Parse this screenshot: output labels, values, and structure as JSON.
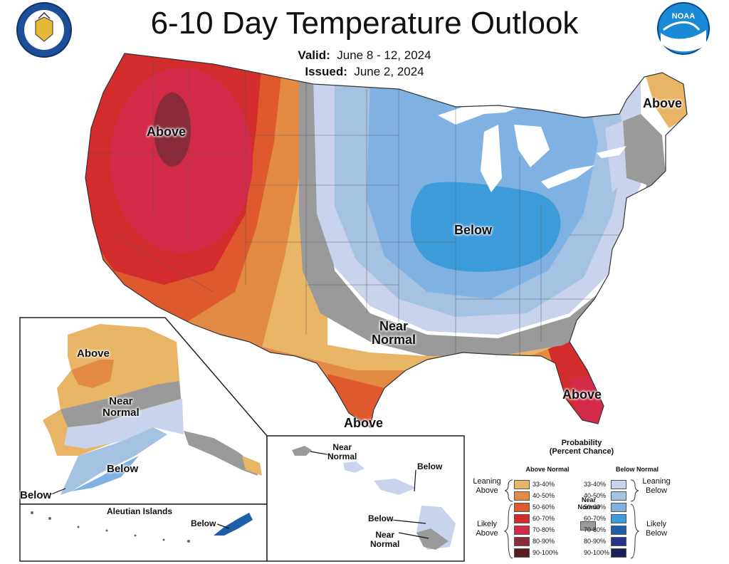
{
  "header": {
    "title": "6-10 Day Temperature Outlook",
    "valid_label": "Valid:",
    "valid_value": "June 8 - 12, 2024",
    "issued_label": "Issued:",
    "issued_value": "June 2, 2024"
  },
  "logos": {
    "left": "doc-seal",
    "right": "noaa-logo",
    "noaa_text": "NOAA"
  },
  "conus_labels": {
    "northwest": "Above",
    "northeast": "Above",
    "central": "Below",
    "near_normal": "Near\nNormal",
    "florida": "Above",
    "texas": "Above"
  },
  "alaska_labels": {
    "above": "Above",
    "near_normal": "Near\nNormal",
    "below": "Below",
    "below_sw": "Below"
  },
  "aleutian": {
    "title": "Aleutian Islands",
    "below": "Below"
  },
  "hawaii_labels": {
    "near_normal_nw": "Near\nNormal",
    "below_ne": "Below",
    "below_big": "Below",
    "near_normal_big": "Near\nNormal"
  },
  "legend": {
    "title": "Probability\n(Percent Chance)",
    "above_header": "Above Normal",
    "below_header": "Below Normal",
    "near_normal": "Near\nNormal",
    "leaning_above": "Leaning\nAbove",
    "likely_above": "Likely\nAbove",
    "leaning_below": "Leaning\nBelow",
    "likely_below": "Likely\nBelow",
    "above_bins": [
      {
        "label": "33-40%",
        "color": "#E8B466"
      },
      {
        "label": "40-50%",
        "color": "#E38B45"
      },
      {
        "label": "50-60%",
        "color": "#DE5A2E"
      },
      {
        "label": "60-70%",
        "color": "#D32C2C"
      },
      {
        "label": "70-80%",
        "color": "#D42A4A"
      },
      {
        "label": "80-90%",
        "color": "#8A2A3A"
      },
      {
        "label": "90-100%",
        "color": "#5A1E22"
      }
    ],
    "below_bins": [
      {
        "label": "33-40%",
        "color": "#C9D4EC"
      },
      {
        "label": "40-50%",
        "color": "#A6C2E2"
      },
      {
        "label": "50-60%",
        "color": "#7FB2E3"
      },
      {
        "label": "60-70%",
        "color": "#3E9BDA"
      },
      {
        "label": "70-80%",
        "color": "#1D5FA8"
      },
      {
        "label": "80-90%",
        "color": "#28338A"
      },
      {
        "label": "90-100%",
        "color": "#1C1F5C"
      }
    ],
    "near_normal_color": "#9A9A9A"
  },
  "colors": {
    "above_33": "#E8B466",
    "above_40": "#E38B45",
    "above_50": "#DE5A2E",
    "above_60": "#D32C2C",
    "above_70": "#D42A4A",
    "above_80": "#8A2A3A",
    "below_33": "#C9D4EC",
    "below_40": "#A6C2E2",
    "below_50": "#7FB2E3",
    "below_60": "#3E9BDA",
    "below_70": "#1D5FA8",
    "near": "#9A9A9A",
    "lakes": "#ffffff"
  }
}
